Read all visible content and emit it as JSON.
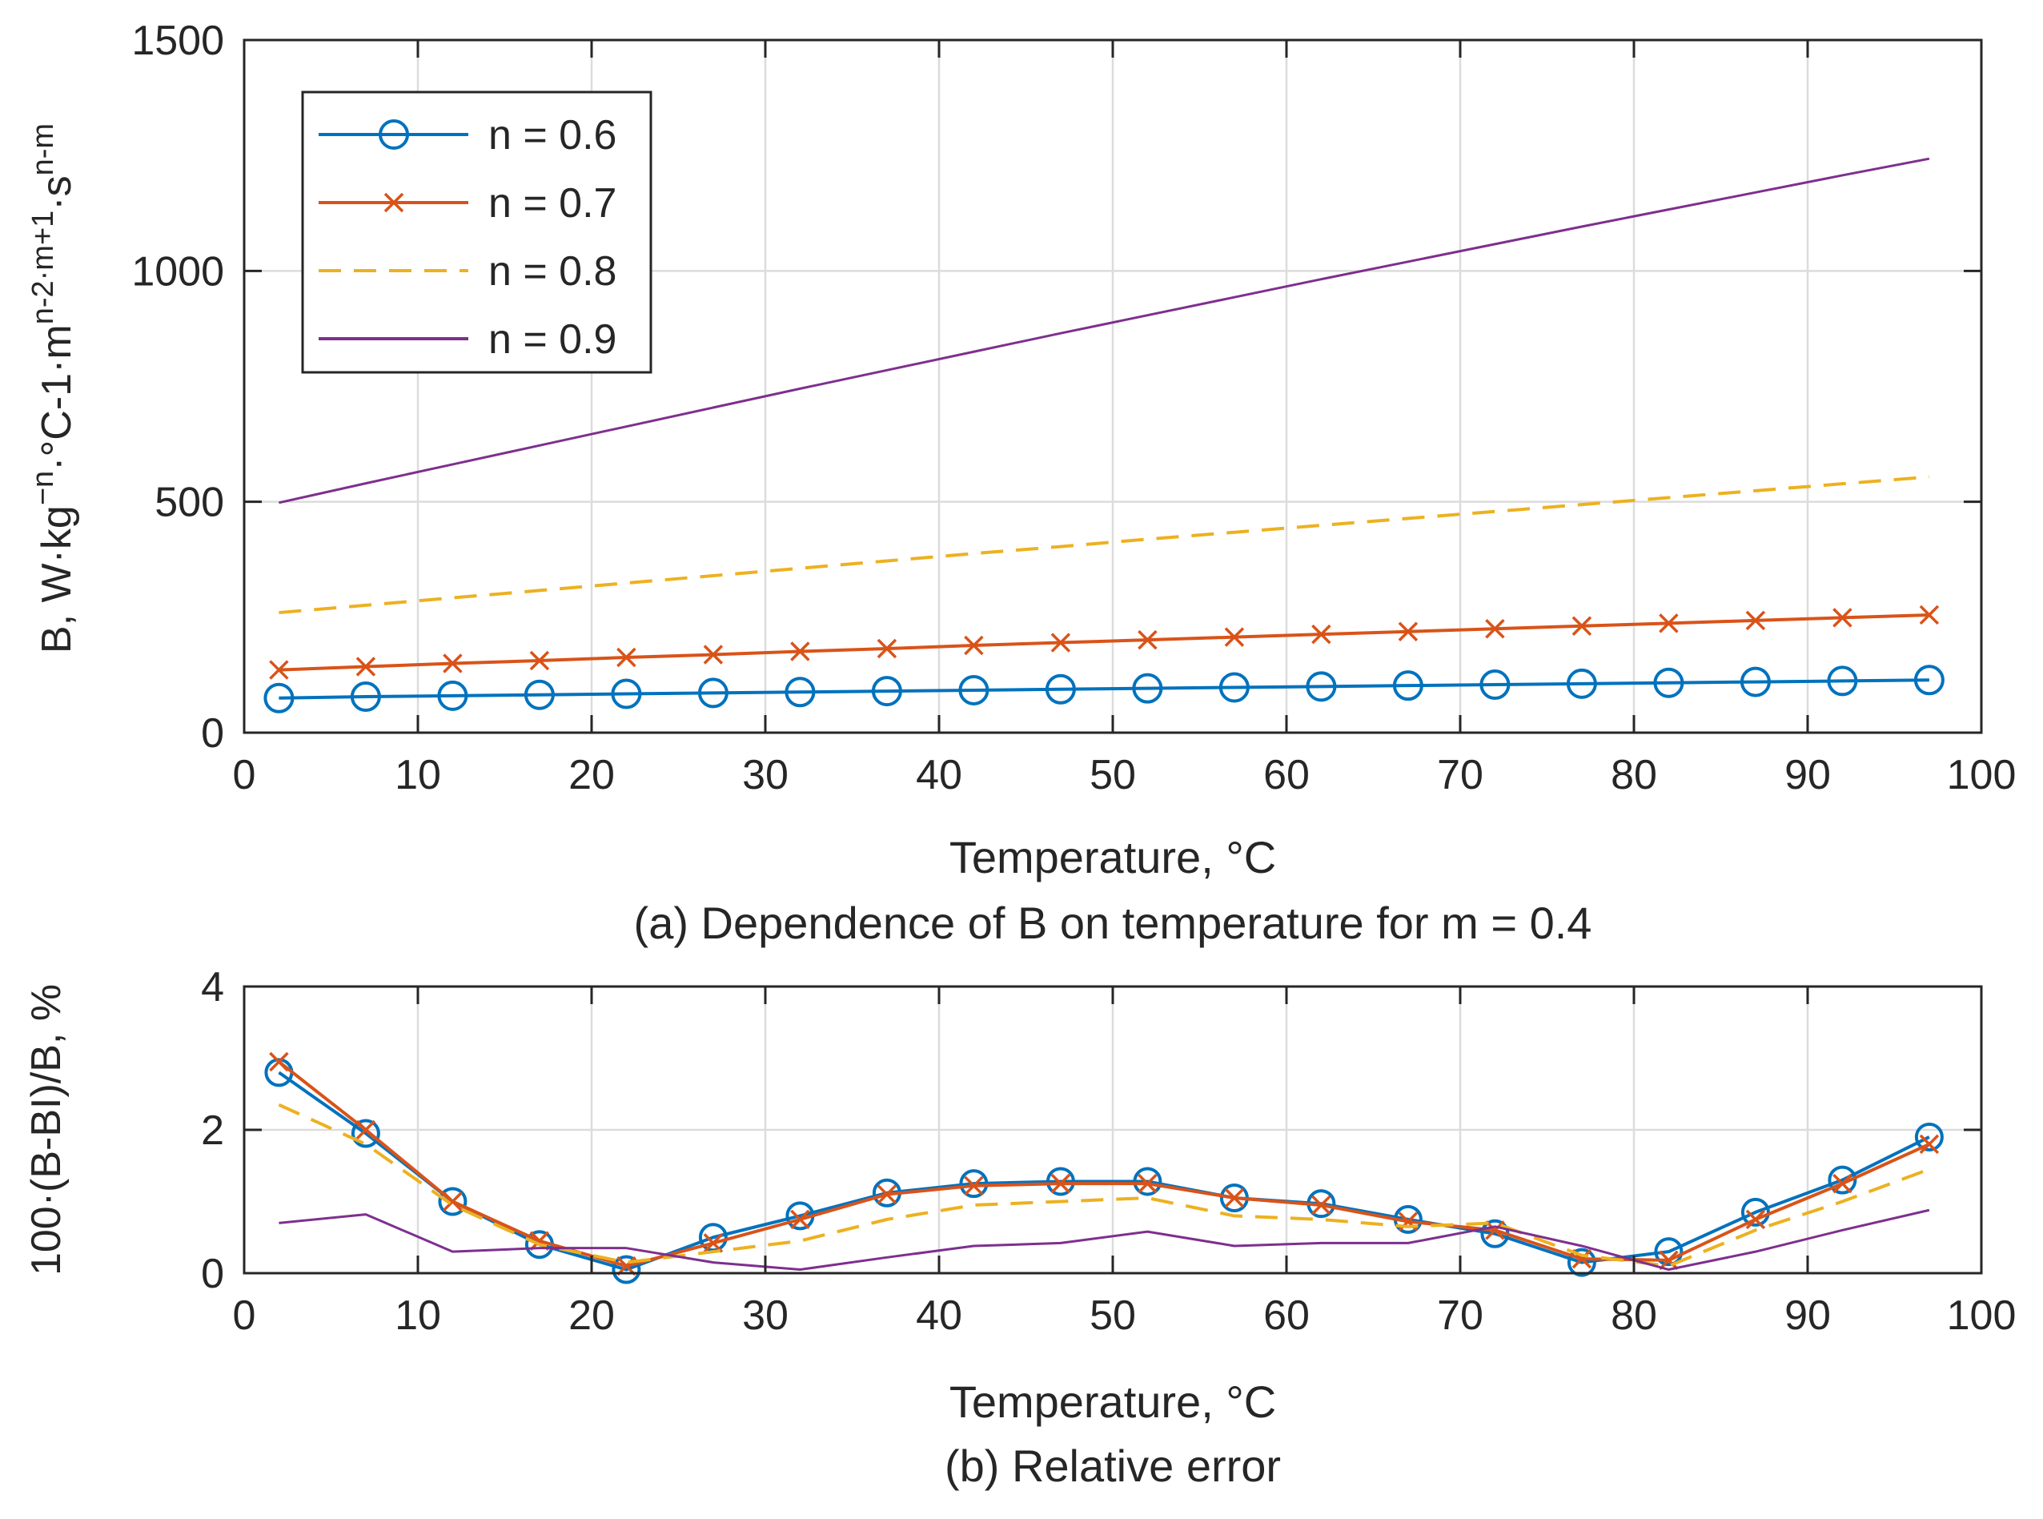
{
  "chart_data": [
    {
      "type": "line",
      "xlabel": "Temperature, °C",
      "ylabel": "B, W·kg⁻ⁿ·°C-1·mⁿ⁻²ᵐ⁺¹·sⁿ⁻ᵐ",
      "caption": "(a) Dependence of B on temperature for m = 0.4",
      "xlim": [
        0,
        100
      ],
      "ylim": [
        0,
        1500
      ],
      "xticks": [
        "0",
        "10",
        "20",
        "30",
        "40",
        "50",
        "60",
        "70",
        "80",
        "90",
        "100"
      ],
      "yticks": [
        "0",
        "500",
        "1000",
        "1500"
      ],
      "grid": true,
      "legend_position": "top-left",
      "x": [
        2,
        7,
        12,
        17,
        22,
        27,
        32,
        37,
        42,
        47,
        52,
        57,
        62,
        67,
        72,
        77,
        82,
        87,
        92,
        97
      ],
      "series": [
        {
          "name": "n = 0.6",
          "color": "#0072BD",
          "marker": "circle",
          "dash": "solid",
          "values": [
            75,
            78,
            80,
            82,
            84,
            86,
            88,
            90,
            92,
            94,
            96,
            98,
            100,
            102,
            104,
            106,
            108,
            110,
            112,
            114
          ]
        },
        {
          "name": "n = 0.7",
          "color": "#D95319",
          "marker": "x",
          "dash": "solid",
          "values": [
            136,
            143,
            150,
            156,
            163,
            169,
            176,
            182,
            189,
            195,
            201,
            207,
            213,
            219,
            225,
            231,
            237,
            243,
            249,
            255
          ]
        },
        {
          "name": "n = 0.8",
          "color": "#EDB120",
          "marker": "none",
          "dash": "dashed",
          "values": [
            260,
            276,
            292,
            308,
            324,
            340,
            356,
            372,
            388,
            403,
            419,
            434,
            449,
            464,
            479,
            494,
            509,
            524,
            539,
            554
          ]
        },
        {
          "name": "n = 0.9",
          "color": "#7E2F8E",
          "marker": "none",
          "dash": "solid",
          "values": [
            498,
            540,
            581,
            622,
            663,
            704,
            745,
            785,
            825,
            865,
            904,
            943,
            982,
            1020,
            1058,
            1096,
            1133,
            1170,
            1207,
            1243
          ]
        }
      ]
    },
    {
      "type": "line",
      "xlabel": "Temperature, °C",
      "ylabel": "100·(B-BI)/B, %",
      "caption": "(b) Relative error",
      "xlim": [
        0,
        100
      ],
      "ylim": [
        0,
        4
      ],
      "xticks": [
        "0",
        "10",
        "20",
        "30",
        "40",
        "50",
        "60",
        "70",
        "80",
        "90",
        "100"
      ],
      "yticks": [
        "0",
        "2",
        "4"
      ],
      "grid": true,
      "x": [
        2,
        7,
        12,
        17,
        22,
        27,
        32,
        37,
        42,
        47,
        52,
        57,
        62,
        67,
        72,
        77,
        82,
        87,
        92,
        97
      ],
      "series": [
        {
          "name": "n = 0.6",
          "color": "#0072BD",
          "marker": "circle",
          "dash": "solid",
          "values": [
            2.8,
            1.95,
            1.0,
            0.4,
            0.05,
            0.5,
            0.8,
            1.12,
            1.25,
            1.28,
            1.28,
            1.05,
            0.97,
            0.75,
            0.55,
            0.15,
            0.3,
            0.85,
            1.3,
            1.9
          ]
        },
        {
          "name": "n = 0.7",
          "color": "#D95319",
          "marker": "x",
          "dash": "solid",
          "values": [
            2.95,
            2.0,
            1.0,
            0.45,
            0.1,
            0.42,
            0.75,
            1.1,
            1.22,
            1.25,
            1.25,
            1.05,
            0.95,
            0.72,
            0.6,
            0.2,
            0.18,
            0.75,
            1.25,
            1.8
          ]
        },
        {
          "name": "n = 0.8",
          "color": "#EDB120",
          "marker": "none",
          "dash": "dashed",
          "values": [
            2.35,
            1.8,
            0.95,
            0.4,
            0.15,
            0.3,
            0.45,
            0.75,
            0.95,
            1.0,
            1.05,
            0.8,
            0.75,
            0.65,
            0.7,
            0.25,
            0.1,
            0.6,
            1.0,
            1.45
          ]
        },
        {
          "name": "n = 0.9",
          "color": "#7E2F8E",
          "marker": "none",
          "dash": "solid",
          "values": [
            0.7,
            0.82,
            0.3,
            0.35,
            0.35,
            0.15,
            0.05,
            0.22,
            0.38,
            0.42,
            0.58,
            0.38,
            0.42,
            0.42,
            0.65,
            0.38,
            0.05,
            0.3,
            0.6,
            0.88
          ]
        }
      ]
    }
  ]
}
